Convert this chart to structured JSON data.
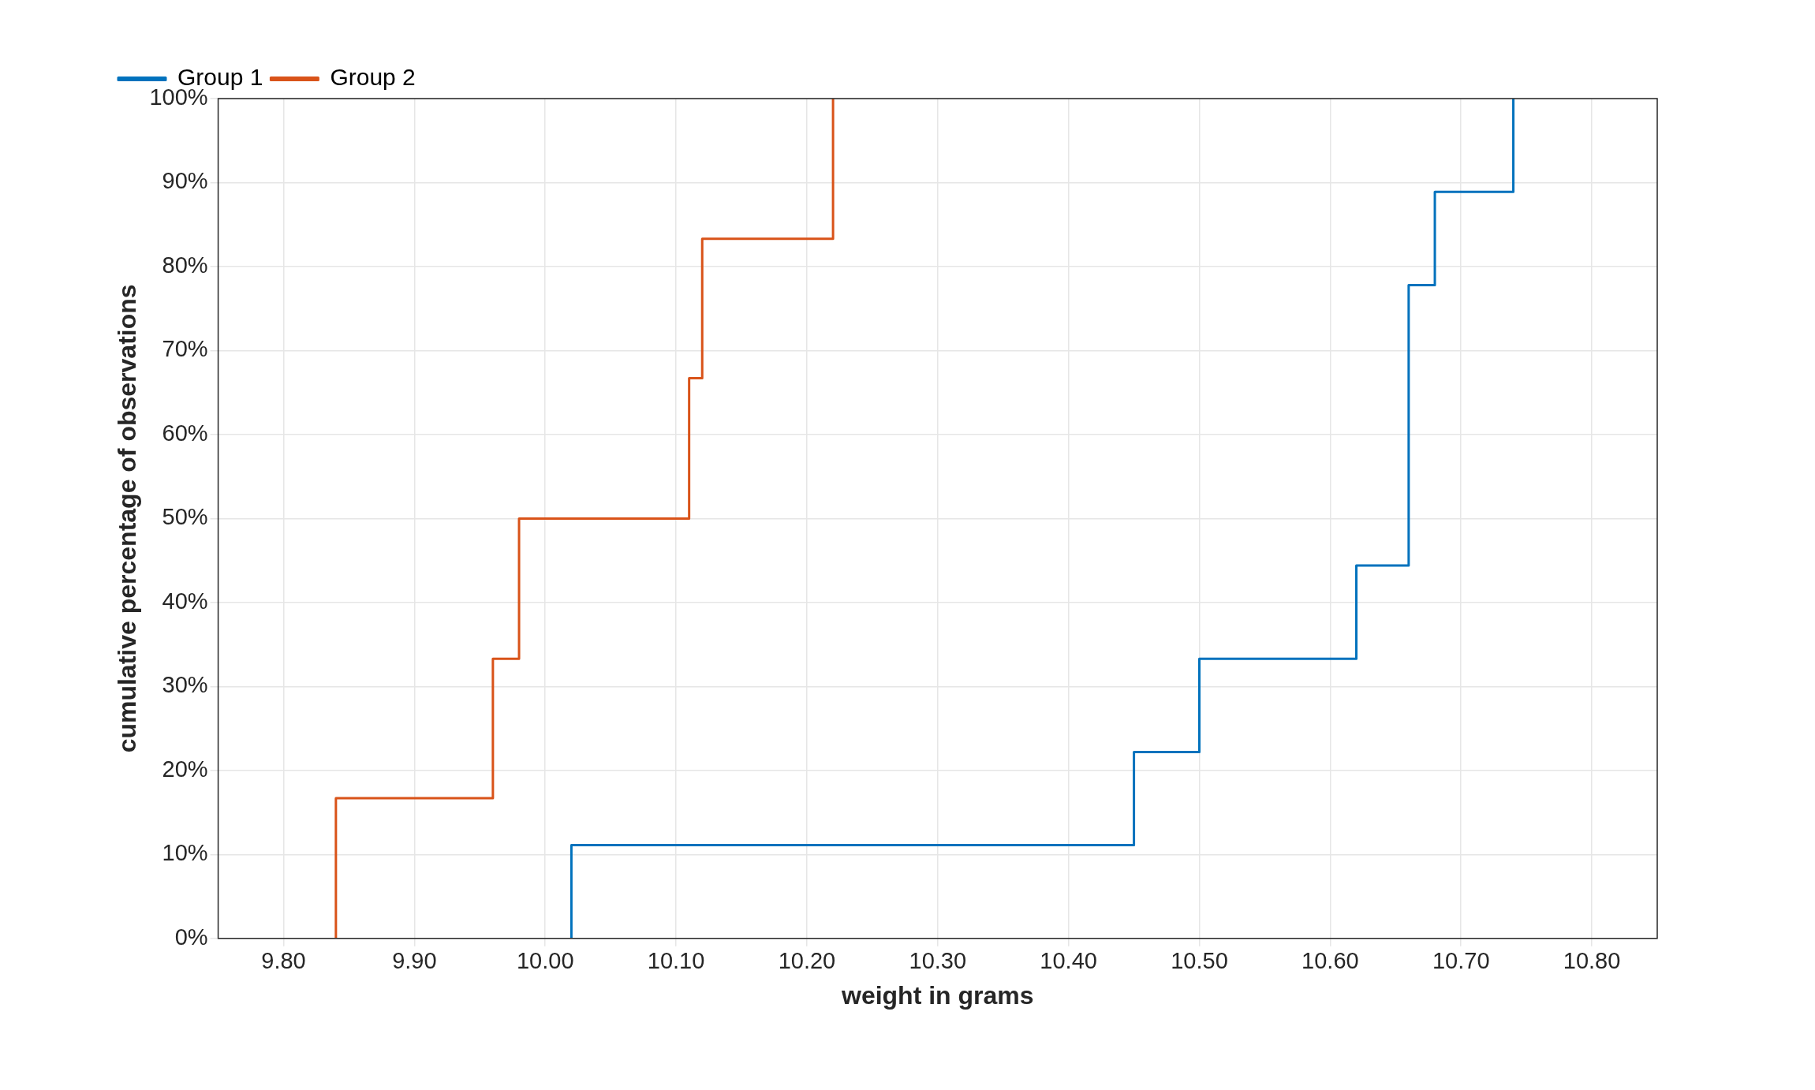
{
  "chart_data": {
    "type": "step",
    "xlabel": "weight in grams",
    "ylabel": "cumulative percentage of observations",
    "xlim": [
      9.75,
      10.85
    ],
    "xticks": [
      {
        "value": 9.8,
        "label": "9.80"
      },
      {
        "value": 9.9,
        "label": "9.90"
      },
      {
        "value": 10.0,
        "label": "10.00"
      },
      {
        "value": 10.1,
        "label": "10.10"
      },
      {
        "value": 10.2,
        "label": "10.20"
      },
      {
        "value": 10.3,
        "label": "10.30"
      },
      {
        "value": 10.4,
        "label": "10.40"
      },
      {
        "value": 10.5,
        "label": "10.50"
      },
      {
        "value": 10.6,
        "label": "10.60"
      },
      {
        "value": 10.7,
        "label": "10.70"
      },
      {
        "value": 10.8,
        "label": "10.80"
      }
    ],
    "ylim": [
      0,
      100
    ],
    "yticks": [
      {
        "value": 0,
        "label": "0%"
      },
      {
        "value": 10,
        "label": "10%"
      },
      {
        "value": 20,
        "label": "20%"
      },
      {
        "value": 30,
        "label": "30%"
      },
      {
        "value": 40,
        "label": "40%"
      },
      {
        "value": 50,
        "label": "50%"
      },
      {
        "value": 60,
        "label": "60%"
      },
      {
        "value": 70,
        "label": "70%"
      },
      {
        "value": 80,
        "label": "80%"
      },
      {
        "value": 90,
        "label": "90%"
      },
      {
        "value": 100,
        "label": "100%"
      }
    ],
    "grid": true,
    "legend": "top left",
    "marker": "none",
    "line_style": "solid",
    "series": [
      {
        "name": "Group 1",
        "color": "#0072bd",
        "x": [
          10.02,
          10.02,
          10.45,
          10.5,
          10.62,
          10.66,
          10.68,
          10.74
        ],
        "values": [
          0,
          11.1,
          22.2,
          33.3,
          44.4,
          77.8,
          88.9,
          100
        ]
      },
      {
        "name": "Group 2",
        "color": "#d95319",
        "x": [
          9.84,
          9.84,
          9.96,
          9.98,
          10.11,
          10.12,
          10.22
        ],
        "values": [
          0,
          16.7,
          33.3,
          50,
          66.7,
          83.3,
          100
        ]
      }
    ]
  }
}
